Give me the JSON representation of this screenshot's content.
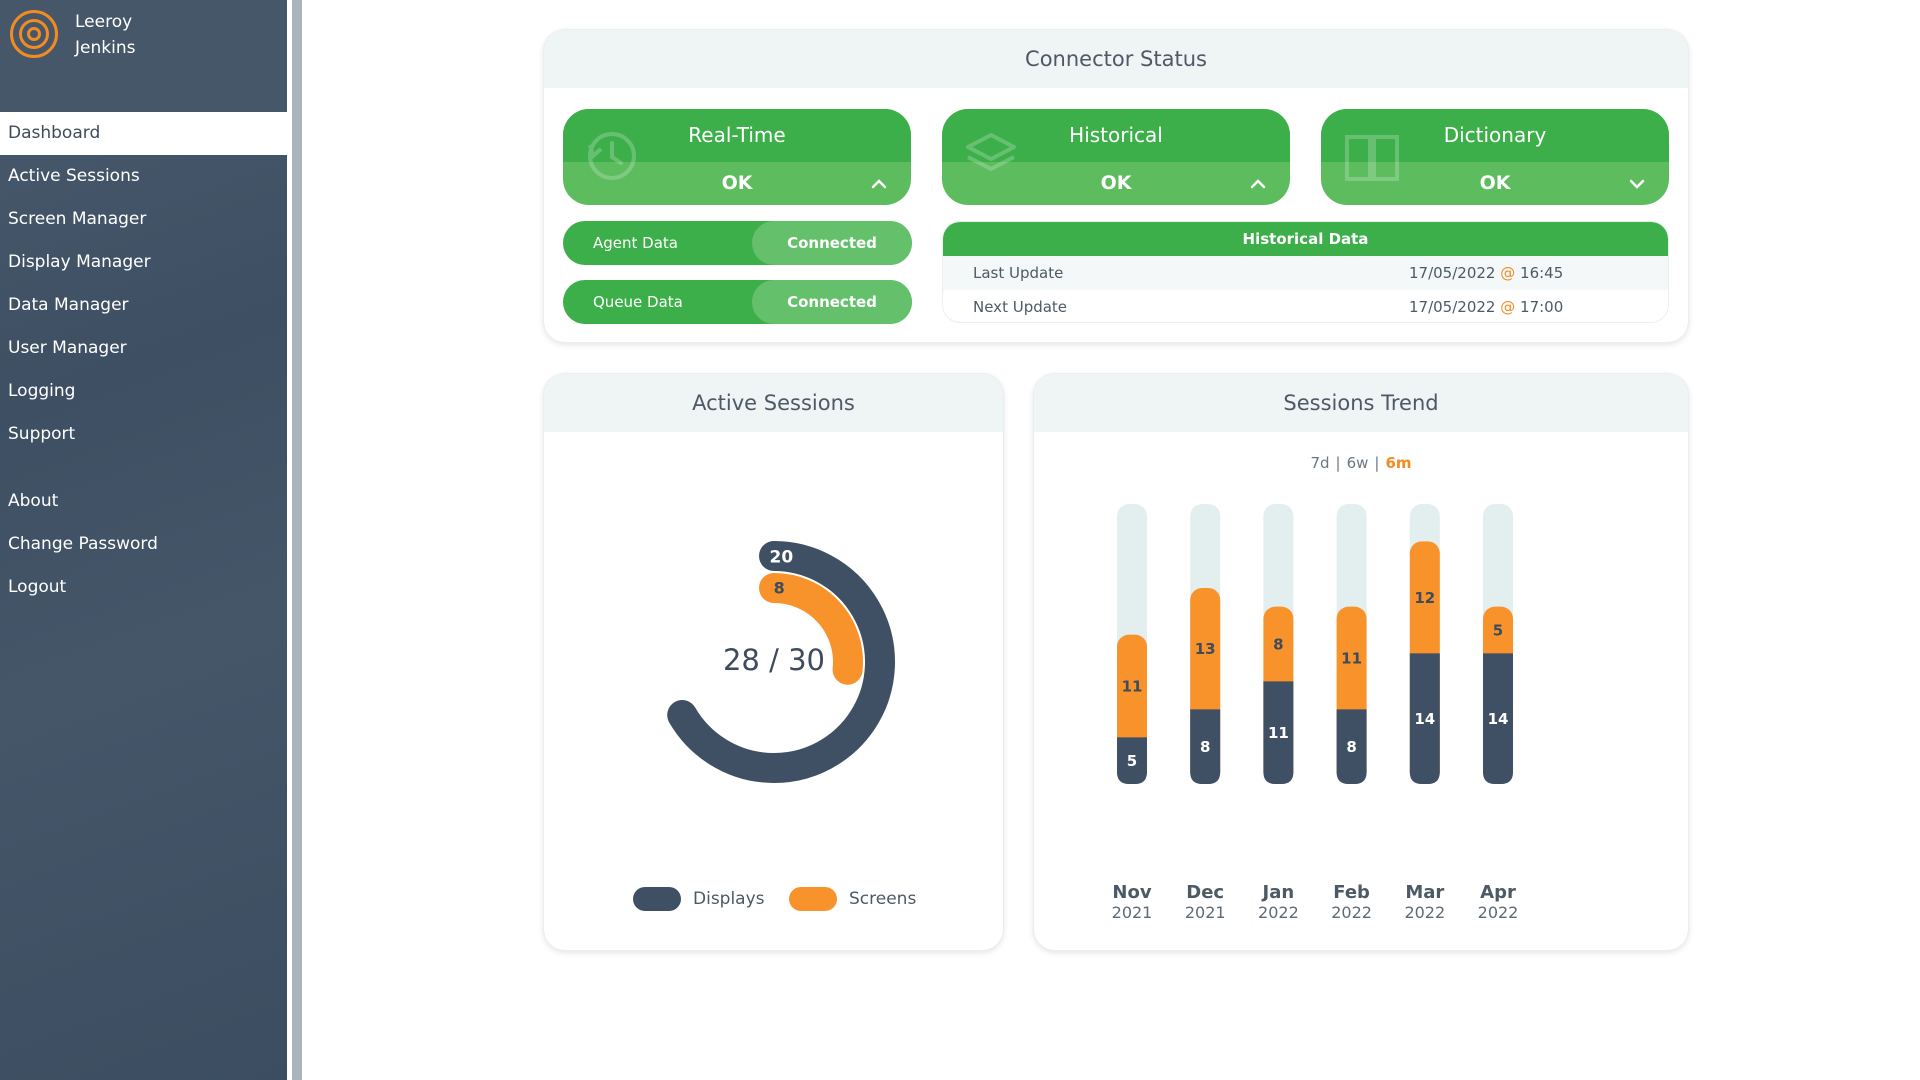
{
  "user": {
    "first_name": "Leeroy",
    "last_name": "Jenkins"
  },
  "nav": {
    "items": [
      "Dashboard",
      "Active Sessions",
      "Screen Manager",
      "Display Manager",
      "Data Manager",
      "User Manager",
      "Logging",
      "Support"
    ],
    "secondary": [
      "About",
      "Change Password",
      "Logout"
    ],
    "active": "Dashboard"
  },
  "connector_status": {
    "title": "Connector Status",
    "tiles": [
      {
        "label": "Real-Time",
        "status": "OK",
        "icon": "history-icon",
        "chevron": "up"
      },
      {
        "label": "Historical",
        "status": "OK",
        "icon": "layers-icon",
        "chevron": "up"
      },
      {
        "label": "Dictionary",
        "status": "OK",
        "icon": "book-icon",
        "chevron": "down"
      }
    ],
    "pills": [
      {
        "label": "Agent Data",
        "value": "Connected"
      },
      {
        "label": "Queue Data",
        "value": "Connected"
      }
    ],
    "historical_data": {
      "title": "Historical Data",
      "rows": [
        {
          "key": "Last Update",
          "date": "17/05/2022",
          "at": "@",
          "time": "16:45"
        },
        {
          "key": "Next Update",
          "date": "17/05/2022",
          "at": "@",
          "time": "17:00"
        }
      ]
    }
  },
  "active_sessions": {
    "title": "Active Sessions",
    "center_text": "28 / 30",
    "displays": 20,
    "screens": 8,
    "legend": {
      "displays": "Displays",
      "screens": "Screens"
    }
  },
  "sessions_trend": {
    "title": "Sessions Trend",
    "ranges": [
      "7d",
      "6w",
      "6m"
    ],
    "range_separator": "|",
    "active_range": "6m"
  },
  "colors": {
    "sidebar": "#3f5065",
    "green_dark": "#3daf4a",
    "green_light": "#5cbc5e",
    "orange": "#f8922a",
    "navy": "#3f5065",
    "track": "#e3eeef"
  },
  "chart_data": {
    "type": "bar",
    "stacked": true,
    "categories": [
      "Nov 2021",
      "Dec 2021",
      "Jan 2022",
      "Feb 2022",
      "Mar 2022",
      "Apr 2022"
    ],
    "category_months": [
      "Nov",
      "Dec",
      "Jan",
      "Feb",
      "Mar",
      "Apr"
    ],
    "category_years": [
      "2021",
      "2021",
      "2022",
      "2022",
      "2022",
      "2022"
    ],
    "series": [
      {
        "name": "Displays",
        "color": "#3f5065",
        "values": [
          5,
          8,
          11,
          8,
          14,
          14
        ]
      },
      {
        "name": "Screens",
        "color": "#f8922a",
        "values": [
          11,
          13,
          8,
          11,
          12,
          5
        ]
      }
    ],
    "ylim": [
      0,
      30
    ]
  }
}
